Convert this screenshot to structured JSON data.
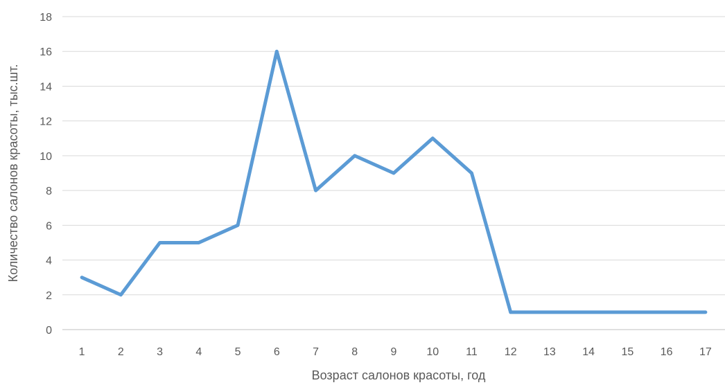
{
  "chart_data": {
    "type": "line",
    "title": "",
    "xlabel": "Возраст салонов красоты, год",
    "ylabel": "Количество салонов красоты, тыс.шт.",
    "categories": [
      "1",
      "2",
      "3",
      "4",
      "5",
      "6",
      "7",
      "8",
      "9",
      "10",
      "11",
      "12",
      "13",
      "14",
      "15",
      "16",
      "17"
    ],
    "series": [
      {
        "values": [
          3,
          2,
          5,
          5,
          6,
          16,
          8,
          10,
          9,
          11,
          9,
          1,
          1,
          1,
          1,
          1,
          1
        ]
      }
    ],
    "ylim": [
      0,
      18
    ],
    "yticks": [
      0,
      2,
      4,
      6,
      8,
      10,
      12,
      14,
      16,
      18
    ],
    "grid": "horizontal",
    "legend": "none",
    "colors": {
      "line": "#5b9bd5",
      "grid": "#d9d9d9",
      "text": "#595959"
    }
  }
}
